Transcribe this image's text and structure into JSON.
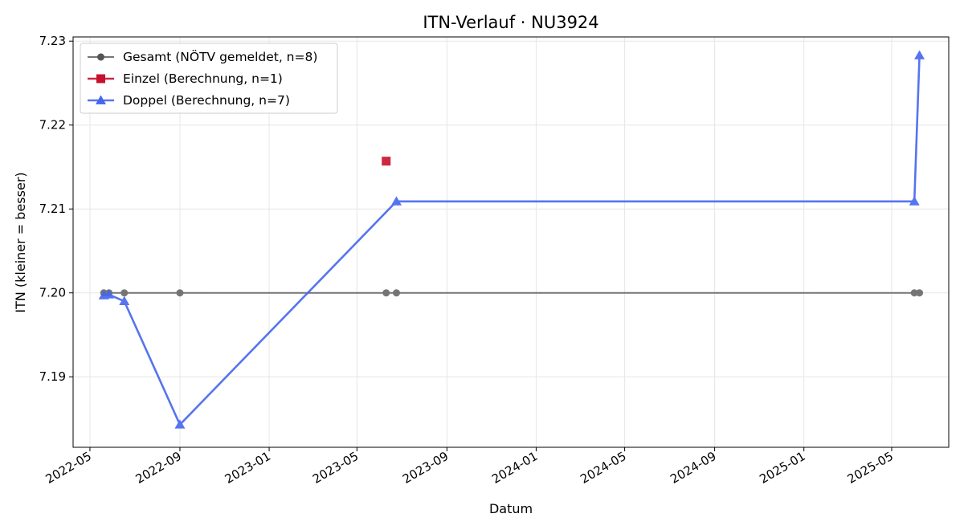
{
  "chart_data": {
    "type": "line",
    "title": "ITN-Verlauf · NU3924",
    "xlabel": "Datum",
    "ylabel": "ITN  (kleiner = besser)",
    "x_type": "date",
    "xlim": [
      "2022-04-08",
      "2025-07-18"
    ],
    "ylim": [
      7.1816,
      7.2305
    ],
    "x_ticks": [
      "2022-05-01",
      "2022-09-01",
      "2023-01-01",
      "2023-05-01",
      "2023-09-01",
      "2024-01-01",
      "2024-05-01",
      "2024-09-01",
      "2025-01-01",
      "2025-05-01"
    ],
    "x_tick_labels": [
      "2022-05",
      "2022-09",
      "2023-01",
      "2023-05",
      "2023-09",
      "2024-01",
      "2024-05",
      "2024-09",
      "2025-01",
      "2025-05"
    ],
    "y_ticks": [
      7.19,
      7.2,
      7.21,
      7.22,
      7.23
    ],
    "y_tick_labels": [
      "7.19",
      "7.20",
      "7.21",
      "7.22",
      "7.23"
    ],
    "grid": true,
    "legend_position": "top-left",
    "series": [
      {
        "name": "Gesamt (NÖTV gemeldet, n=8)",
        "color": "#555555",
        "marker": "circle",
        "line": true,
        "points": [
          {
            "x": "2022-05-20",
            "y": 7.2
          },
          {
            "x": "2022-05-27",
            "y": 7.2
          },
          {
            "x": "2022-06-17",
            "y": 7.2
          },
          {
            "x": "2022-09-01",
            "y": 7.2
          },
          {
            "x": "2023-06-10",
            "y": 7.2
          },
          {
            "x": "2023-06-24",
            "y": 7.2
          },
          {
            "x": "2025-06-01",
            "y": 7.2
          },
          {
            "x": "2025-06-08",
            "y": 7.2
          }
        ]
      },
      {
        "name": "Einzel (Berechnung, n=1)",
        "color": "#c8102e",
        "marker": "square",
        "line": true,
        "points": [
          {
            "x": "2023-06-10",
            "y": 7.2157
          }
        ]
      },
      {
        "name": "Doppel (Berechnung, n=7)",
        "color": "#4466ee",
        "marker": "triangle",
        "line": true,
        "points": [
          {
            "x": "2022-05-20",
            "y": 7.1997
          },
          {
            "x": "2022-05-27",
            "y": 7.1998
          },
          {
            "x": "2022-06-17",
            "y": 7.199
          },
          {
            "x": "2022-09-01",
            "y": 7.1843
          },
          {
            "x": "2023-06-24",
            "y": 7.2109
          },
          {
            "x": "2025-06-01",
            "y": 7.2109
          },
          {
            "x": "2025-06-08",
            "y": 7.2283
          }
        ]
      }
    ]
  }
}
